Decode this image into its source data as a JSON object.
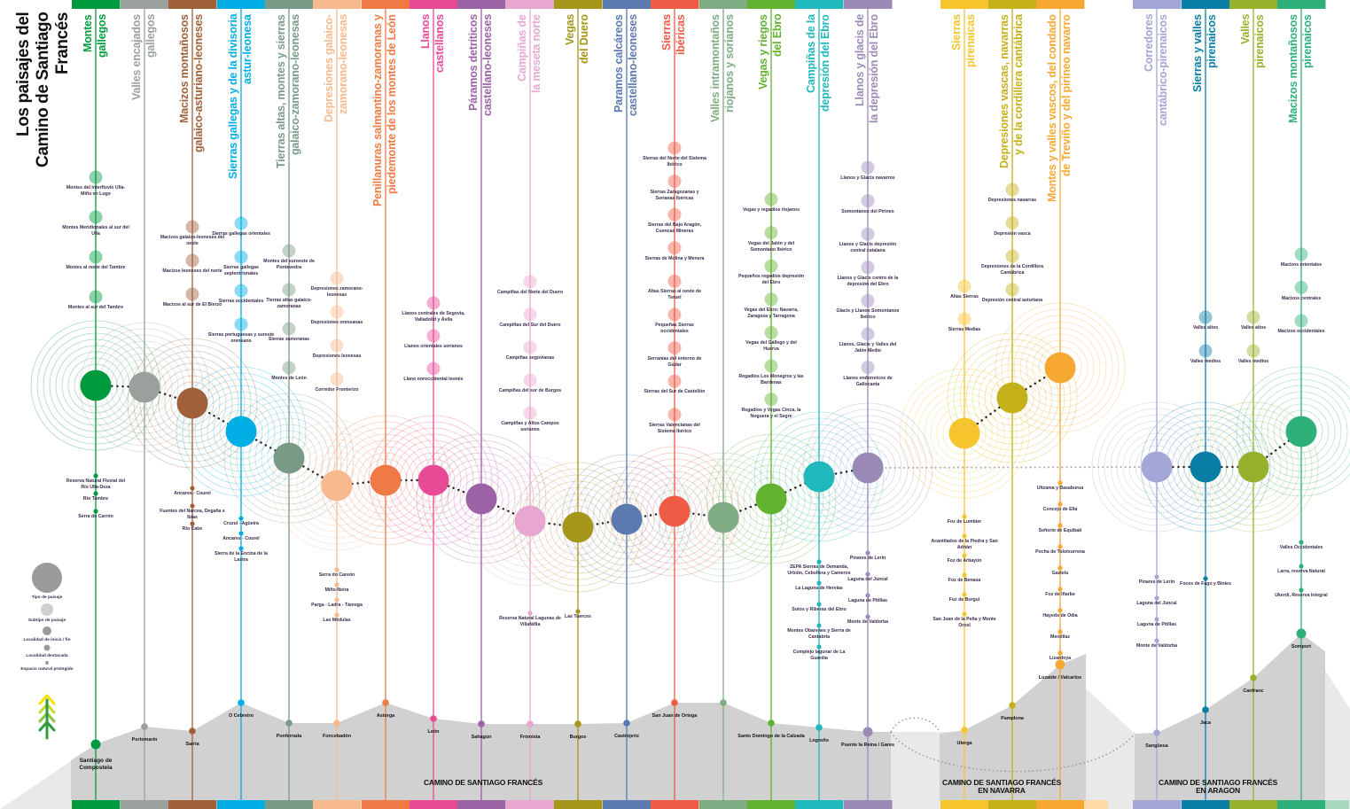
{
  "title": [
    "Los paisajes del",
    "Camino de Santiago Francés"
  ],
  "regions": {
    "main": [
      "CAMINO DE SANTIAGO FRANCÉS"
    ],
    "navarra": [
      "CAMINO DE SANTIAGO FRANCÉS",
      "EN NAVARRA"
    ],
    "aragon": [
      "CAMINO DE SANTIAGO FRANCÉS",
      "EN ARAGON"
    ]
  },
  "legend": [
    {
      "label": "Tipo de paisaje",
      "color": "#9b9b9b"
    },
    {
      "label": "Subtipo de paisaje",
      "color": "#cfcfcf"
    },
    {
      "label": "Localidad de inicio / fin",
      "color": "#9b9b9b"
    },
    {
      "label": "Localidad destacada",
      "color": "#9b9b9b"
    },
    {
      "label": "Espacio natural protegido",
      "color": "#9b9b9b"
    }
  ],
  "legend_icon": "tree-chevrons-icon",
  "columns": [
    {
      "header": [
        "Montes",
        "gallegos"
      ],
      "color": "#009a3e",
      "locality": "Santiago de Compostela",
      "subtypes": [
        "Montes del Interfluvio Ulla-Miño en Lugo",
        "Montes Meridionales al sur del Ulla",
        "Montes al norte del Tambre",
        "Montes al sur del Tambre"
      ],
      "spaces": [
        "Reserva Natural Fluvial del Río Ulla-Deza",
        "Río Tambre",
        "Serra do Carrón"
      ]
    },
    {
      "header": [
        "Valles encajados",
        "gallegos"
      ],
      "color": "#9aa09c",
      "locality": "Portomarín",
      "subtypes": [],
      "spaces": []
    },
    {
      "header": [
        "Macizos montañosos",
        "galaico-asturiano-leoneses"
      ],
      "color": "#a0603a",
      "locality": "Sarria",
      "subtypes": [
        "Macizos galaico-leoneses del oeste",
        "Macizos leoneses del norte",
        "Macizos al sur de El Bierzo"
      ],
      "spaces": [
        "Ancares - Courel",
        "Fuentes del Narcea, Degaña e Ibias",
        "Río Cabe"
      ]
    },
    {
      "header": [
        "Sierras gallegas y de la divisoria",
        "astur-leonesa"
      ],
      "color": "#00aee6",
      "locality": "O Cebreiro",
      "subtypes": [
        "Sierras gallegas orientales",
        "Sierras gallegas septentrionales",
        "Sierras occidentales",
        "Sierras portuguesas y sureste orensano"
      ],
      "spaces": [
        "Cruzul - Agüeira",
        "Ancares - Courel",
        "Sierra de la Encina de la Lastra"
      ]
    },
    {
      "header": [
        "Tierras altas, montes y sierras",
        "galaico-zamorano-leonesas"
      ],
      "color": "#7a9a88",
      "locality": "Ponferrada",
      "subtypes": [
        "Montes del suroeste de Pontevedra",
        "Tierras altas galaico-zamoranas",
        "Sierras zamoranas",
        "Montes de León"
      ],
      "spaces": []
    },
    {
      "header": [
        "Depresiones galaico-",
        "zamorano-leonesas"
      ],
      "color": "#f7b98e",
      "locality": "Foncebadón",
      "subtypes": [
        "Depresiones zamorano-leonesas",
        "Depresiones orensanas",
        "Depresiones leonesas",
        "Corredor Fronterizo"
      ],
      "spaces": [
        "Serra do Careón",
        "Miño-Neira",
        "Parga - Ladra - Támoga",
        "Las Médulas"
      ]
    },
    {
      "header": [
        "Penillanuras salmantino-zamoranas y",
        "piedemonte de los montes de León"
      ],
      "color": "#ef7a45",
      "locality": "Astorga",
      "subtypes": [],
      "spaces": []
    },
    {
      "header": [
        "Llanos",
        "castellanos"
      ],
      "color": "#e84b96",
      "locality": "León",
      "subtypes": [
        "Llanos centrales de Segovia, Valladolid y Ávila",
        "Llanos orientales sorianos",
        "Llano noroccidental leonés"
      ],
      "spaces": []
    },
    {
      "header": [
        "Páramos detríticos",
        "castellano-leoneses"
      ],
      "color": "#9b62a6",
      "locality": "Sahagún",
      "subtypes": [],
      "spaces": []
    },
    {
      "header": [
        "Campiñas de",
        "la meseta norte"
      ],
      "color": "#e8a7cf",
      "locality": "Frómista",
      "subtypes": [
        "Campiñas del Norte del Duero",
        "Campiñas del Sur del Duero",
        "Campiñas segovianas",
        "Campiñas del sur de Burgos",
        "Campiñas y Altos Campos sorianos"
      ],
      "spaces": [
        "Reserva Natural Lagunas de Villafáfila"
      ]
    },
    {
      "header": [
        "Vegas",
        "del Duero"
      ],
      "color": "#a5961a",
      "locality": "Burgos",
      "subtypes": [],
      "spaces": [
        "Las Tuerces"
      ]
    },
    {
      "header": [
        "Paramos calcáreos",
        "castellano-leoneses"
      ],
      "color": "#5a7ab0",
      "locality": "Castrojeriz",
      "subtypes": [],
      "spaces": []
    },
    {
      "header": [
        "Sierras",
        "ibéricas"
      ],
      "color": "#ef5b44",
      "locality": "San Juan de Ortega",
      "subtypes": [
        "Sierras del Norte del Sistema Ibérico",
        "Sierras Zaragozanas y Sorianas Ibéricas",
        "Sierras del Bajo Aragón, Cuencas Mineras",
        "Sierras de Molina y Menera",
        "Altas Sierras al oeste de Teruel",
        "Pequeñas Sierras occidentales",
        "Serranías del entorno de Gúdar",
        "Sierras del Sur de Castellón",
        "Sierras Valencianas del Sistema Ibérico"
      ],
      "spaces": []
    },
    {
      "header": [
        "Valles intramontaños",
        "riojanos y sorianos"
      ],
      "color": "#7fac83",
      "locality": "",
      "subtypes": [],
      "spaces": []
    },
    {
      "header": [
        "Vegas y riegos",
        "del Ebro"
      ],
      "color": "#62b22f",
      "locality": "Santo Domingo de la Calzada",
      "subtypes": [
        "Vegas y regadíos riojanos",
        "Vegas del Jalón y del Somontano Ibérico",
        "Pequeños regadíos depresión del Ebro",
        "Vegas del Ebro: Navarra, Zaragoza y Tarragona",
        "Vegas del Gállego y del Huerva",
        "Regadíos Los Monegros y las Bardenas",
        "Regadíos y Vegas Cinca, la Noguera y el Segre"
      ],
      "spaces": []
    },
    {
      "header": [
        "Campiñas de la",
        "depresión del Ebro"
      ],
      "color": "#1fb8bd",
      "locality": "Logroño",
      "subtypes": [],
      "spaces": [
        "ZEPA Sierras de Demanda, Urbión, Cebollera y Cameros",
        "La Laguna de Hervías",
        "Sotos y Riberas del Ebro",
        "Montes Obarenes y Sierra de Cantabria",
        "Complejo lagunar de La Guardia"
      ]
    },
    {
      "header": [
        "Llanos y glacis de",
        "la depresión del Ebro"
      ],
      "color": "#9b8ab8",
      "locality": "Puente la Reina / Gares",
      "subtypes": [
        "Llanos y Glacis navarros",
        "Somontanos del Pirineo",
        "Llanos y Glacis depresión central catalana",
        "Llanos y Glacis centro de la depresión del Ebro",
        "Glacis y Llanos Somontanos Ibérico",
        "Llanos, Glacis y Valles del Jalón Medio",
        "Llanos endorreicos de Gallocanta"
      ],
      "spaces": [
        "Pinares de Lerín",
        "Laguna del Juncal",
        "Laguna de Pitillas",
        "Monte de Valdorba"
      ]
    },
    {
      "header": [
        "Sierras",
        "pirenaicas"
      ],
      "color": "#f6c52e",
      "locality": "Uterga",
      "subtypes": [
        "Altas Sierras",
        "Sierras Medias"
      ],
      "spaces": [
        "Foz de Lumbier",
        "Acantilados de la Piedra y San Adrián",
        "Foz de Arbayún",
        "Foz de Benasa",
        "Foz de Burgui",
        "San Juan de la Peña y Monte Oroel"
      ]
    },
    {
      "header": [
        "Depresiones vascas, navarras",
        "y de la cordillera cantábrica"
      ],
      "color": "#c4b11a",
      "locality": "Pamplona",
      "subtypes": [
        "Depresiones navarras",
        "Depresión vasca",
        "Depresiones de la Cordillera Cantábrica",
        "Depresión central asturiana"
      ],
      "spaces": []
    },
    {
      "header": [
        "Montes y valles vascos, del condado",
        "de Treviño y del pirineo navarro"
      ],
      "color": "#f7a833",
      "locality": "Luzaide / Valcarlos",
      "subtypes": [],
      "spaces": [
        "Ultzama y Basaburua",
        "Concejo de Ella",
        "Señorío de Equibati",
        "Pocha de Tolotxurrena",
        "Gaztelu",
        "Foz de Iñarbe",
        "Hayedo de Odia",
        "Mendilaz",
        "Lizardoya"
      ]
    },
    {
      "header": [
        "Corredores",
        "cantábrico-pirenaicos"
      ],
      "color": "#a3a6d6",
      "locality": "Sangüesa",
      "subtypes": [],
      "spaces": [
        "Pinares de Lerín",
        "Laguna del Juncal",
        "Laguna de Pitillas",
        "Monte de Valdorba"
      ]
    },
    {
      "header": [
        "Sierras y valles",
        "pirenaicos"
      ],
      "color": "#0a7fa6",
      "locality": "Jaca",
      "subtypes": [
        "Valles altos",
        "Valles medios"
      ],
      "spaces": [
        "Foces de Fago y Binies"
      ]
    },
    {
      "header": [
        "Valles",
        "pirenaicos"
      ],
      "color": "#96b22c",
      "locality": "Canfranc",
      "subtypes": [
        "Valles altos",
        "Valles medios"
      ],
      "spaces": []
    },
    {
      "header": [
        "Macizos montañosos",
        "pirenaicos"
      ],
      "color": "#2eb07a",
      "locality": "Somport",
      "subtypes": [
        "Macizos orientales",
        "Macizos centrales",
        "Macizos occidentales"
      ],
      "spaces": [
        "Valles Occidentales",
        "Larra, reserva Natural",
        "Ukerdi, Reserva Integral"
      ]
    }
  ]
}
